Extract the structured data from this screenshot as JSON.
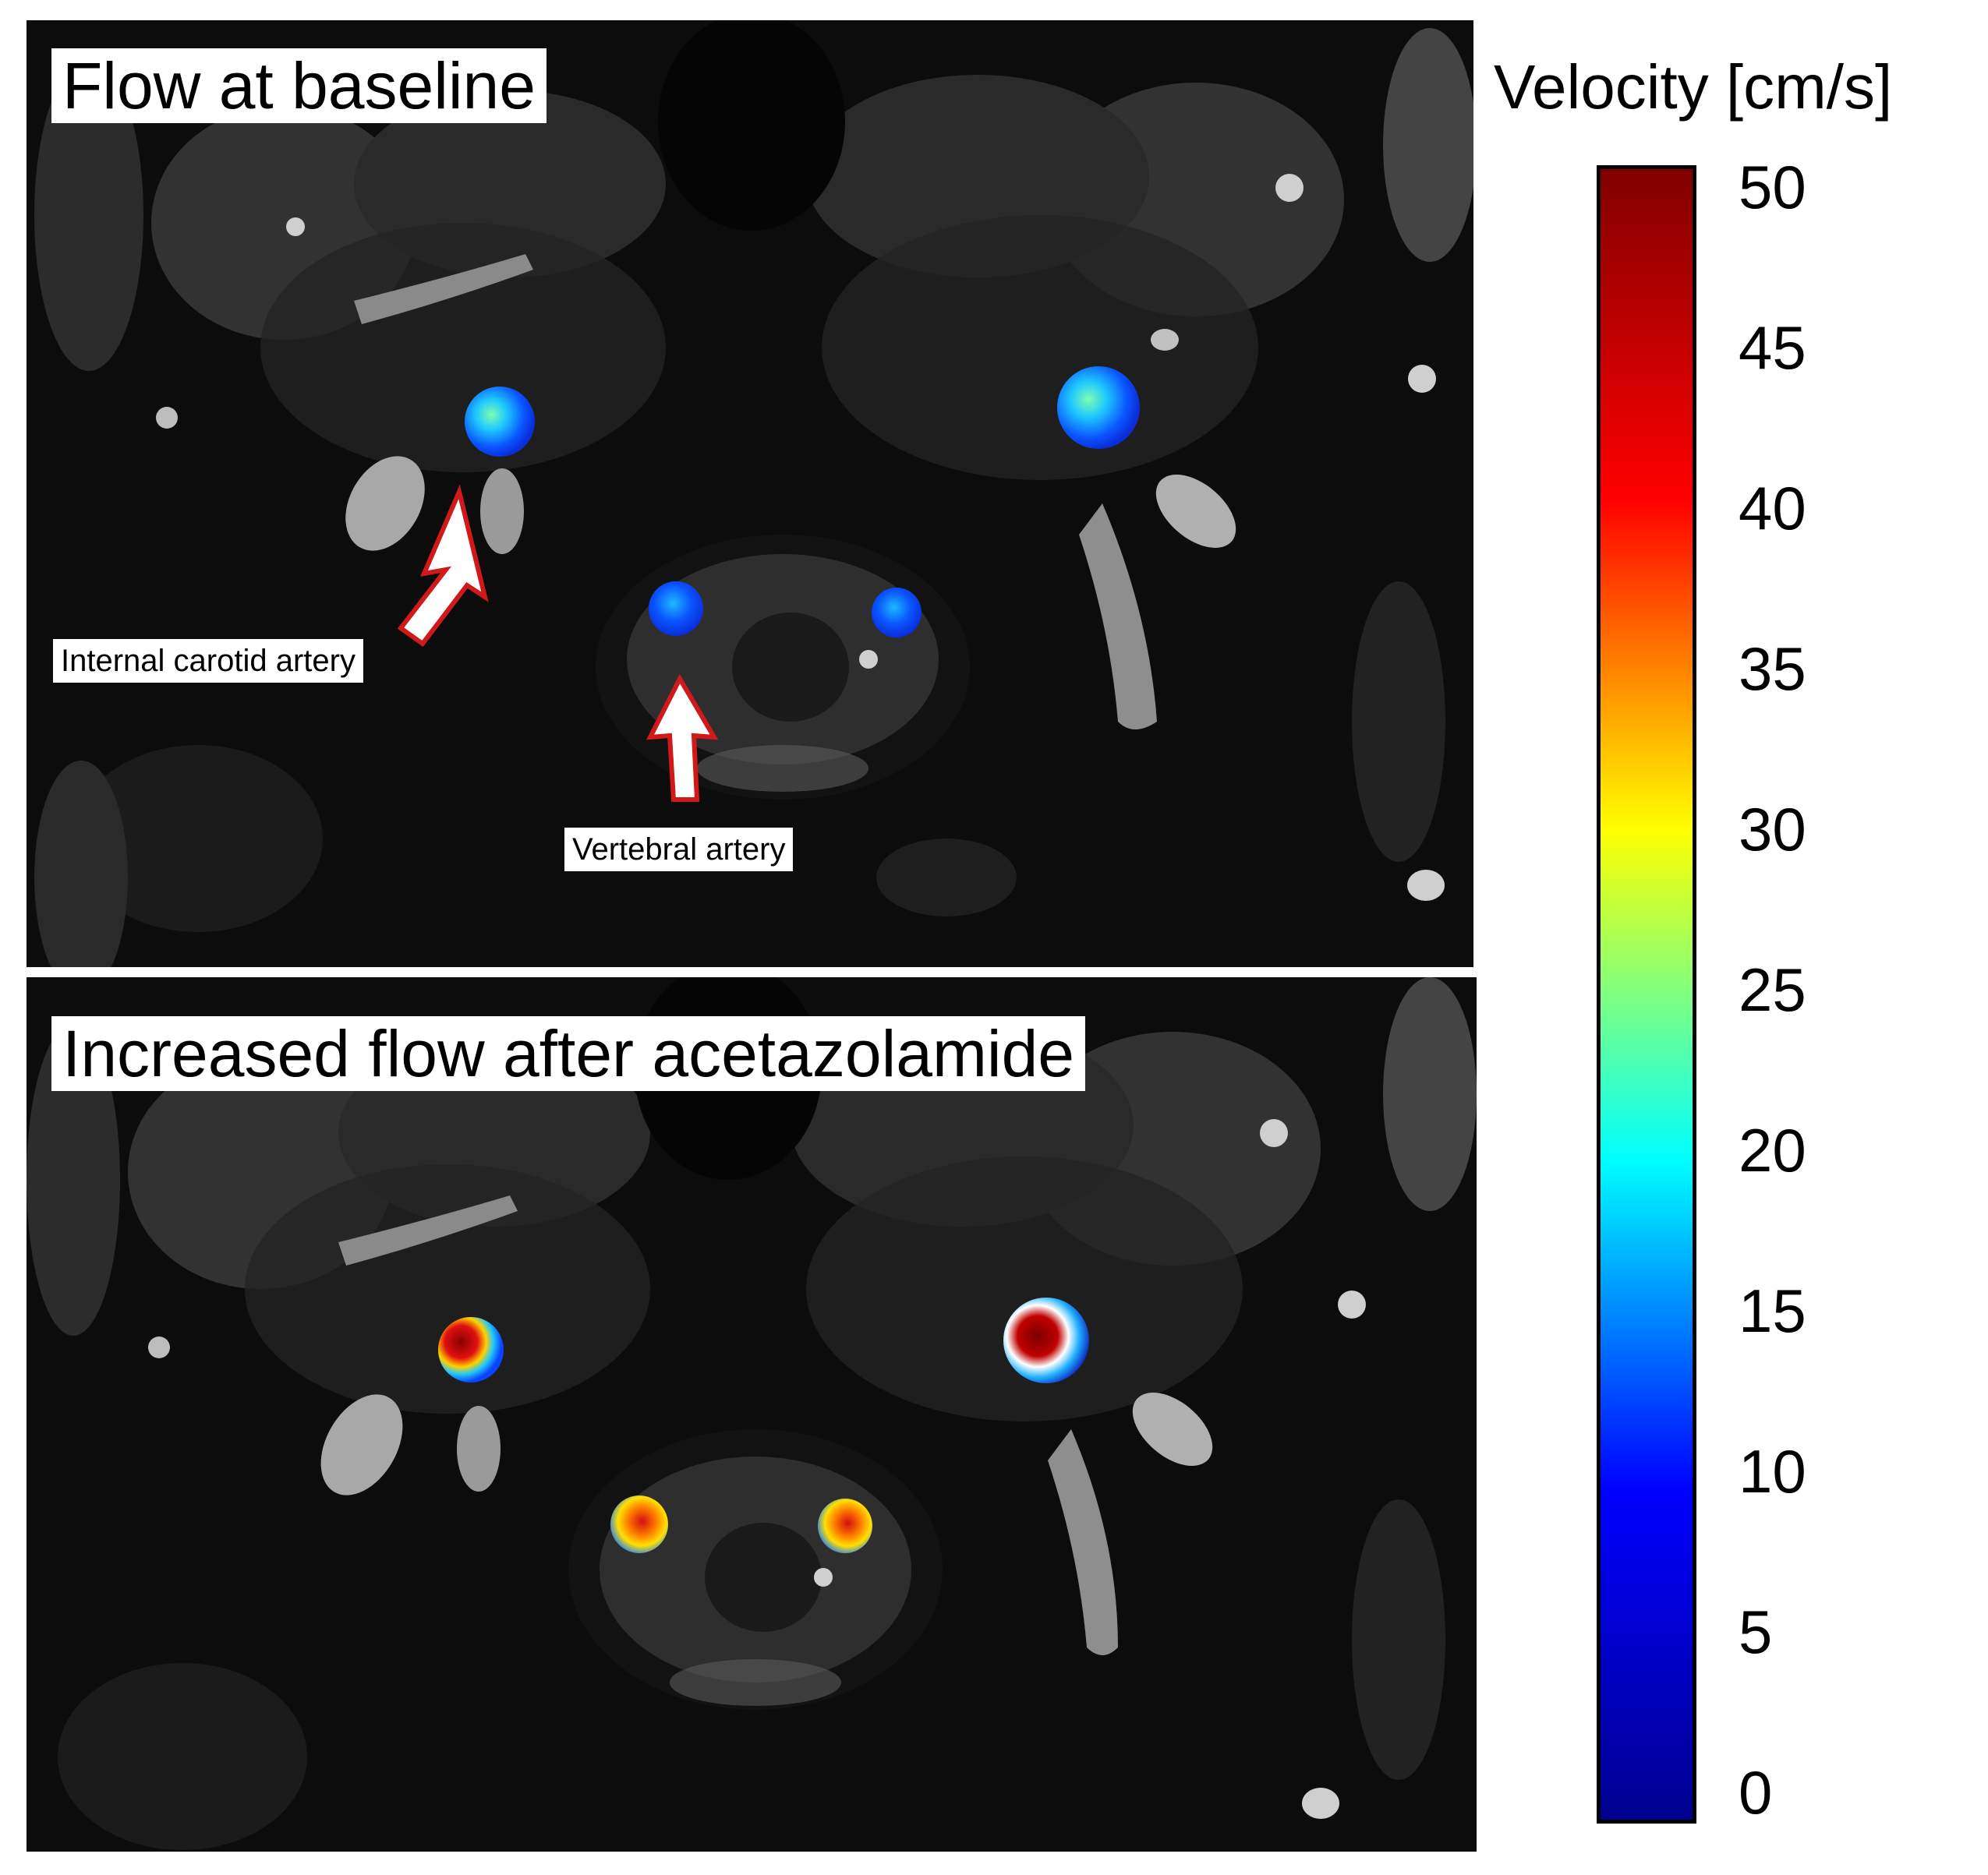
{
  "panels": {
    "top": {
      "title": "Flow at baseline"
    },
    "bottom": {
      "title": "Increased flow after acetazolamide"
    }
  },
  "annotations": {
    "ica_label": "Internal carotid artery",
    "va_label": "Vertebral artery"
  },
  "colorbar": {
    "title": "Velocity [cm/s]",
    "ticks": [
      "50",
      "45",
      "40",
      "35",
      "30",
      "25",
      "20",
      "15",
      "10",
      "5",
      "0"
    ],
    "range": [
      0,
      50
    ],
    "colormap": "jet",
    "gradient_colors": [
      "#00008f",
      "#0000ff",
      "#00ffff",
      "#ffff00",
      "#ff0000",
      "#800000"
    ]
  },
  "colors": {
    "arrow_fill": "#ffffff",
    "arrow_outline": "#d11919",
    "image_background": "#0c0c0c"
  }
}
